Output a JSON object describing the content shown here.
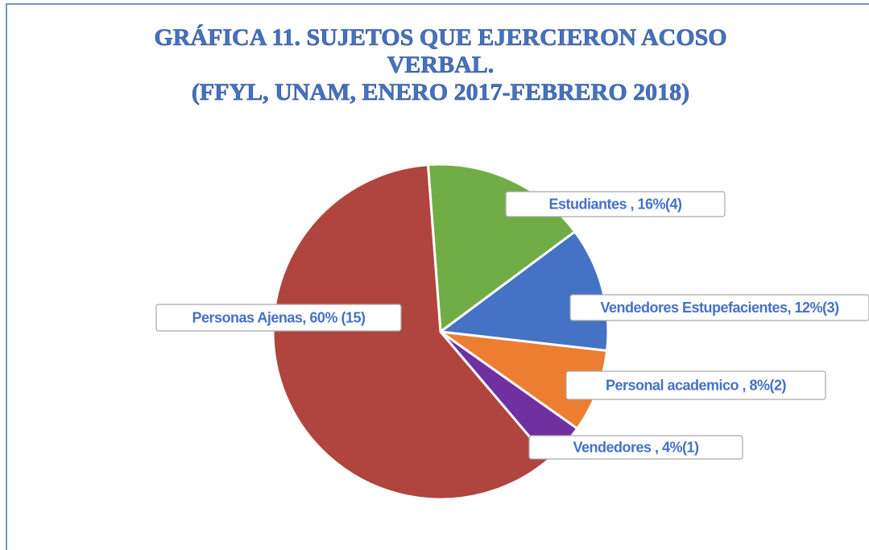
{
  "chart_data": {
    "type": "pie",
    "title": [
      "GRÁFICA 11. SUJETOS QUE EJERCIERON ACOSO",
      "VERBAL.",
      "(FFYL, UNAM, ENERO 2017-FEBRERO 2018)"
    ],
    "values": [
      16,
      12,
      8,
      4,
      60
    ],
    "value_labels": [
      "Estudiantes , 16%(4)",
      "Vendedores Estupefacientes, 12%(3)",
      "Personal academico , 8%(2)",
      "Vendedores , 4%(1)",
      "Personas Ajenas, 60% (15)"
    ],
    "colors": [
      "#70ad47",
      "#4472c4",
      "#ed7d31",
      "#7030a0",
      "#b0443e"
    ]
  }
}
